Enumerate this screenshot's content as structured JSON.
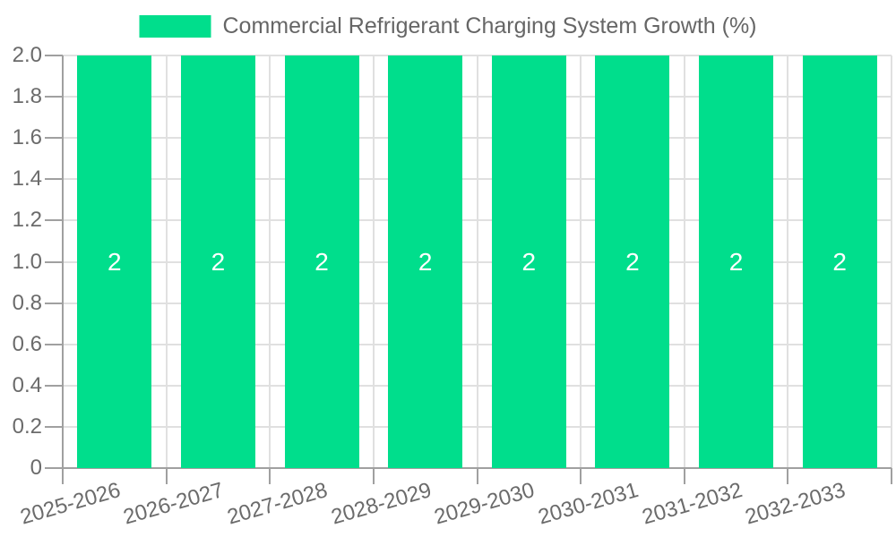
{
  "legend": {
    "label": "Commercial Refrigerant Charging System Growth (%)"
  },
  "chart_data": {
    "type": "bar",
    "title": "Commercial Refrigerant Charging System Growth (%)",
    "categories": [
      "2025-2026",
      "2026-2027",
      "2027-2028",
      "2028-2029",
      "2029-2030",
      "2030-2031",
      "2031-2032",
      "2032-2033"
    ],
    "values": [
      2,
      2,
      2,
      2,
      2,
      2,
      2,
      2
    ],
    "bar_value_labels": [
      "2",
      "2",
      "2",
      "2",
      "2",
      "2",
      "2",
      "2"
    ],
    "xlabel": "",
    "ylabel": "",
    "ylim": [
      0,
      2
    ],
    "ytick_labels": [
      "0",
      "0.2",
      "0.4",
      "0.6",
      "0.8",
      "1.0",
      "1.2",
      "1.4",
      "1.6",
      "1.8",
      "2.0"
    ],
    "grid": true,
    "legend_position": "top-center",
    "colors": {
      "bar": "#00de8c",
      "grid": "#e0e0e0",
      "axis": "#a0a0a0",
      "tick_label": "#6b6b6b",
      "legend_text": "#666666",
      "bar_label": "#ffffff",
      "background": "#ffffff"
    }
  }
}
